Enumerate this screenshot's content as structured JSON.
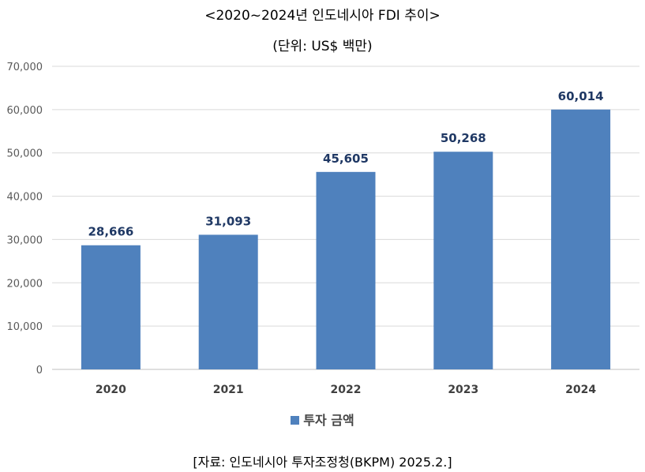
{
  "chart_data": {
    "type": "bar",
    "title": "<2020~2024년 인도네시아 FDI 추이>",
    "subtitle": "(단위: US$ 백만)",
    "categories": [
      "2020",
      "2021",
      "2022",
      "2023",
      "2024"
    ],
    "series": [
      {
        "name": "투자 금액",
        "values": [
          28666,
          31093,
          45605,
          50268,
          60014
        ]
      }
    ],
    "data_labels": [
      "28,666",
      "31,093",
      "45,605",
      "50,268",
      "60,014"
    ],
    "yticks": [
      "0",
      "10,000",
      "20,000",
      "30,000",
      "40,000",
      "50,000",
      "60,000",
      "70,000"
    ],
    "ylim": [
      0,
      70000
    ],
    "grid": true,
    "legend_position": "bottom",
    "bar_color": "#4f81bd",
    "label_color": "#1f3864",
    "source": "[자료: 인도네시아 투자조정청(BKPM) 2025.2.]"
  }
}
